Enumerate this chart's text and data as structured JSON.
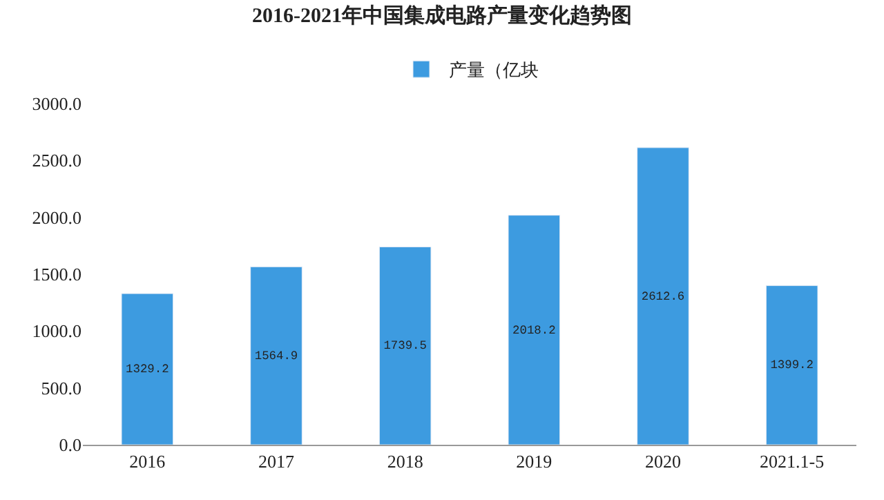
{
  "chart_data": {
    "type": "bar",
    "title": "2016-2021年中国集成电路产量变化趋势图",
    "categories": [
      "2016",
      "2017",
      "2018",
      "2019",
      "2020",
      "2021.1-5"
    ],
    "series": [
      {
        "name": "产量（亿块",
        "color": "#3d9be0",
        "values": [
          1329.2,
          1564.9,
          1739.5,
          2018.2,
          2612.6,
          1399.2
        ]
      }
    ],
    "ylim": [
      0,
      3000
    ],
    "yticks": [
      {
        "value": 0,
        "label": "0.0"
      },
      {
        "value": 500,
        "label": "500.0"
      },
      {
        "value": 1000,
        "label": "1000.0"
      },
      {
        "value": 1500,
        "label": "1500.0"
      },
      {
        "value": 2000,
        "label": "2000.0"
      },
      {
        "value": 2500,
        "label": "2500.0"
      },
      {
        "value": 3000,
        "label": "3000.0"
      }
    ],
    "data_labels": true,
    "legend": "top"
  }
}
